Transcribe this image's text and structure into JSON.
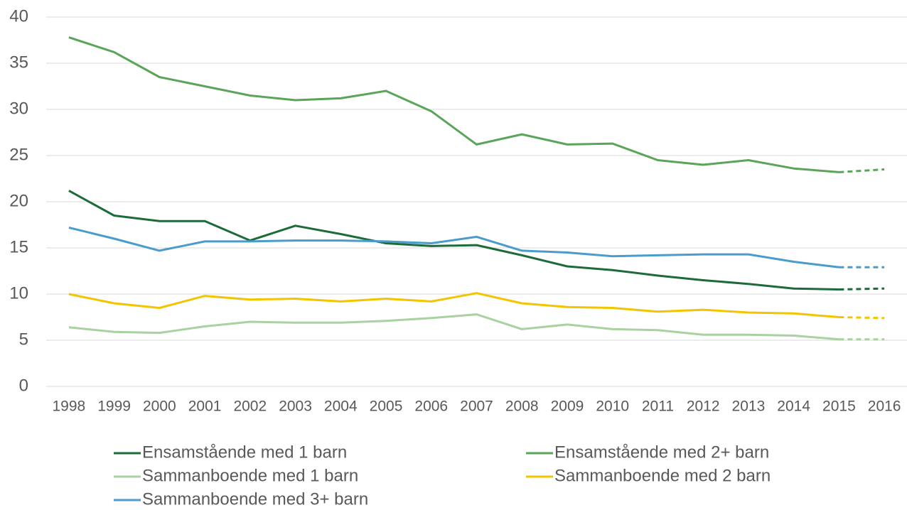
{
  "chart_data": {
    "type": "line",
    "categories": [
      "1998",
      "1999",
      "2000",
      "2001",
      "2002",
      "2003",
      "2004",
      "2005",
      "2006",
      "2007",
      "2008",
      "2009",
      "2010",
      "2011",
      "2012",
      "2013",
      "2014",
      "2015",
      "2016"
    ],
    "dashed_from": "2015",
    "ylim": [
      0,
      40
    ],
    "yticks": [
      0,
      5,
      10,
      15,
      20,
      25,
      30,
      35,
      40
    ],
    "grid": true,
    "legend": "bottom",
    "series": [
      {
        "name": "Ensamstående med 1 barn",
        "color": "#1e6b3a",
        "values": [
          21.2,
          18.5,
          17.9,
          17.9,
          15.8,
          17.4,
          16.5,
          15.5,
          15.2,
          15.3,
          14.2,
          13.0,
          12.6,
          12.0,
          11.5,
          11.1,
          10.6,
          10.5,
          10.6
        ]
      },
      {
        "name": "Ensamstående med 2+ barn",
        "color": "#5aa55a",
        "values": [
          37.8,
          36.2,
          33.5,
          32.5,
          31.5,
          31.0,
          31.2,
          32.0,
          29.8,
          26.2,
          27.3,
          26.2,
          26.3,
          24.5,
          24.0,
          24.5,
          23.6,
          23.2,
          23.5
        ]
      },
      {
        "name": "Sammanboende med 1 barn",
        "color": "#a9d1a1",
        "values": [
          6.4,
          5.9,
          5.8,
          6.5,
          7.0,
          6.9,
          6.9,
          7.1,
          7.4,
          7.8,
          6.2,
          6.7,
          6.2,
          6.1,
          5.6,
          5.6,
          5.5,
          5.1,
          5.1
        ]
      },
      {
        "name": "Sammanboende med 2 barn",
        "color": "#f2c500",
        "values": [
          10.0,
          9.0,
          8.5,
          9.8,
          9.4,
          9.5,
          9.2,
          9.5,
          9.2,
          10.1,
          9.0,
          8.6,
          8.5,
          8.1,
          8.3,
          8.0,
          7.9,
          7.5,
          7.4
        ]
      },
      {
        "name": "Sammanboende med 3+ barn",
        "color": "#4a9ccc",
        "values": [
          17.2,
          16.0,
          14.7,
          15.7,
          15.7,
          15.8,
          15.8,
          15.7,
          15.5,
          16.2,
          14.7,
          14.5,
          14.1,
          14.2,
          14.3,
          14.3,
          13.5,
          12.9,
          12.9
        ]
      }
    ]
  }
}
